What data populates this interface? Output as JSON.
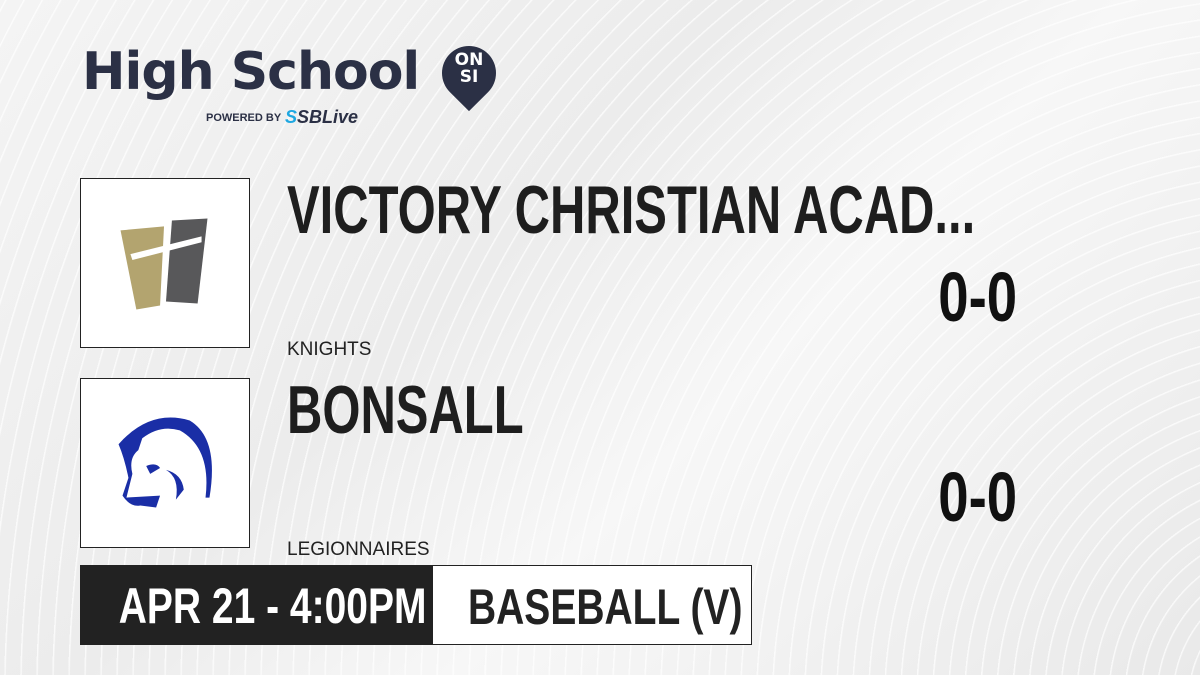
{
  "brand": {
    "title": "High School",
    "badge_top": "ON",
    "badge_bottom": "SI",
    "powered_by": "POWERED BY",
    "partner_prefix": "S",
    "partner": "SBLive"
  },
  "teams": [
    {
      "name": "VICTORY CHRISTIAN ACAD...",
      "mascot": "KNIGHTS",
      "score": "0-0",
      "colors": [
        "#b3a46f",
        "#58585a"
      ]
    },
    {
      "name": "BONSALL",
      "mascot": "LEGIONNAIRES",
      "score": "0-0",
      "colors": [
        "#1a2ea6"
      ]
    }
  ],
  "game": {
    "datetime": "APR 21 - 4:00PM",
    "sport": "BASEBALL (V)"
  }
}
